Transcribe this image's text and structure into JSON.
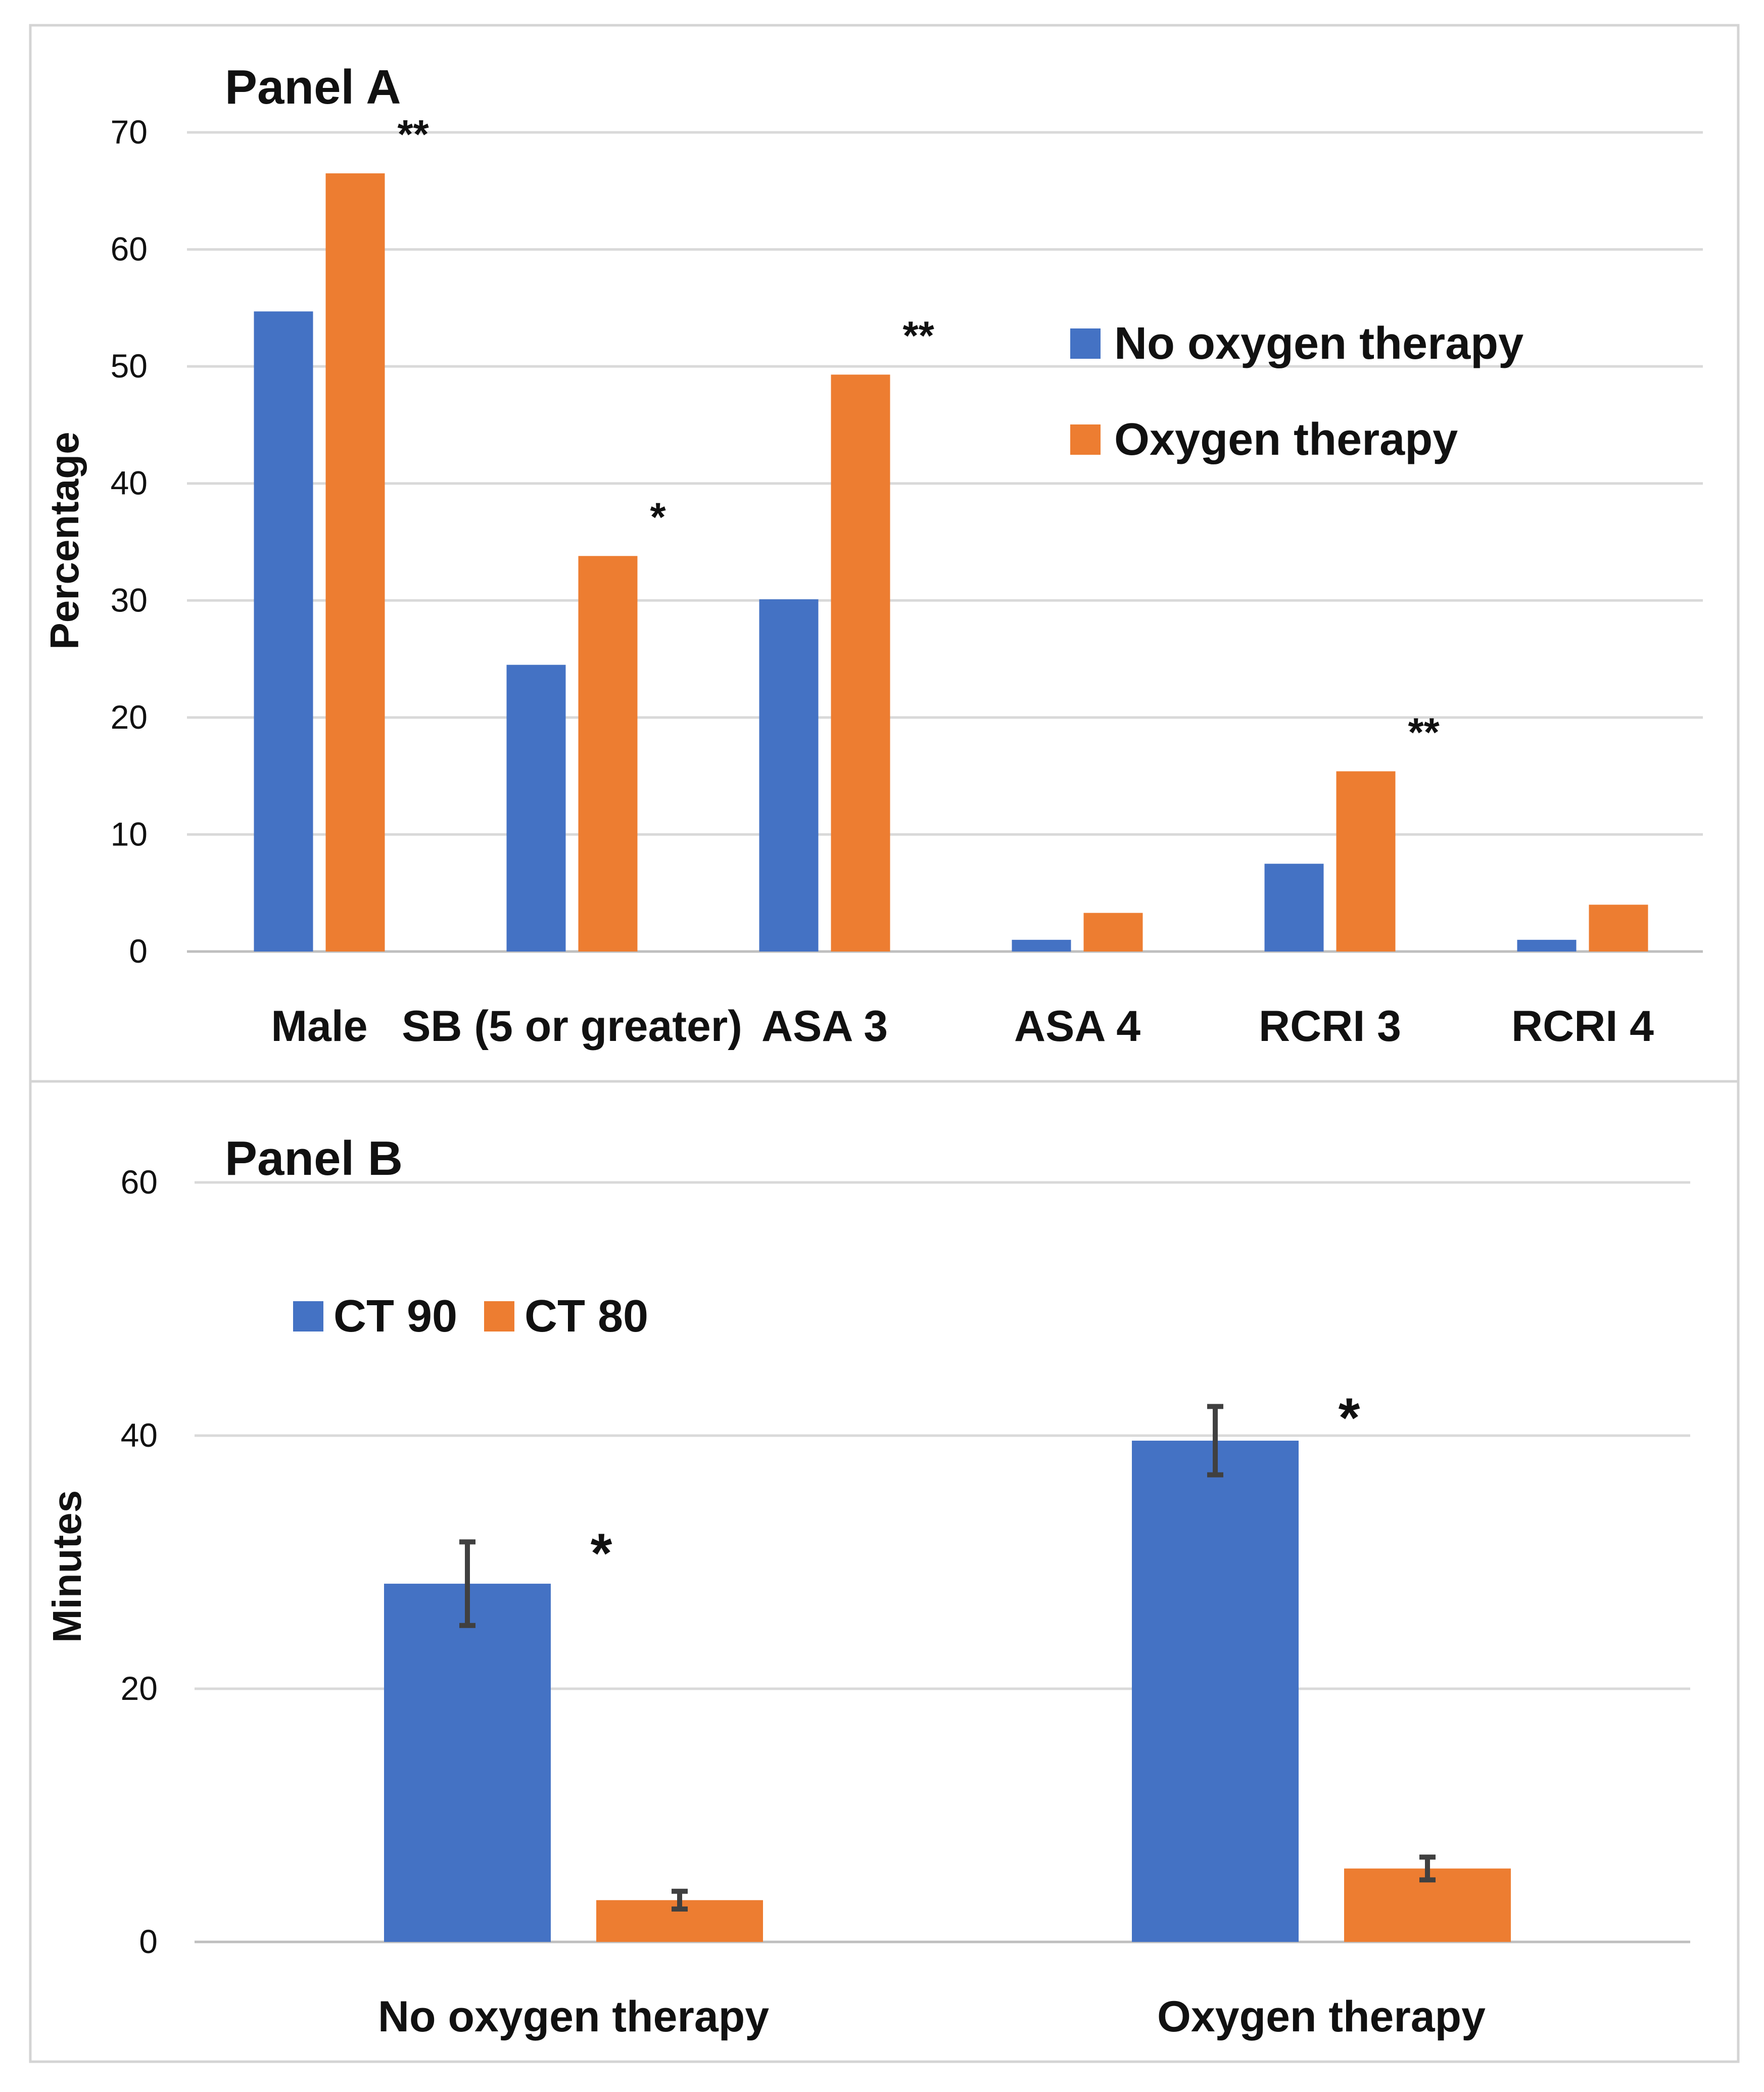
{
  "chart_data": [
    {
      "type": "bar",
      "title": "Panel A",
      "ylabel": "Percentage",
      "xlabel": "",
      "ylim": [
        0,
        70
      ],
      "yticks": [
        0,
        10,
        20,
        30,
        40,
        50,
        60,
        70
      ],
      "grid": true,
      "legend_position": "right",
      "categories": [
        "Male",
        "SB (5 or greater)",
        "ASA 3",
        "ASA 4",
        "RCRI 3",
        "RCRI 4"
      ],
      "series": [
        {
          "name": "No oxygen therapy",
          "color": "#4472C4",
          "values": [
            54.7,
            24.5,
            30.1,
            1.0,
            7.5,
            1.0
          ]
        },
        {
          "name": "Oxygen therapy",
          "color": "#ED7D31",
          "values": [
            66.5,
            33.8,
            49.3,
            3.3,
            15.4,
            4.0
          ]
        }
      ],
      "annotations": [
        "**",
        "*",
        "**",
        "",
        "**",
        ""
      ]
    },
    {
      "type": "bar",
      "title": "Panel B",
      "ylabel": "Minutes",
      "xlabel": "",
      "ylim": [
        0,
        60
      ],
      "yticks": [
        0,
        20,
        40,
        60
      ],
      "grid": true,
      "legend_position": "top-left",
      "categories": [
        "No oxygen therapy",
        "Oxygen therapy"
      ],
      "series": [
        {
          "name": "CT 90",
          "color": "#4472C4",
          "values": [
            28.3,
            39.6
          ],
          "error": [
            3.3,
            2.7
          ]
        },
        {
          "name": "CT 80",
          "color": "#ED7D31",
          "values": [
            3.3,
            5.8
          ],
          "error": [
            0.7,
            0.9
          ]
        }
      ],
      "annotations": [
        "*",
        "*"
      ]
    }
  ]
}
